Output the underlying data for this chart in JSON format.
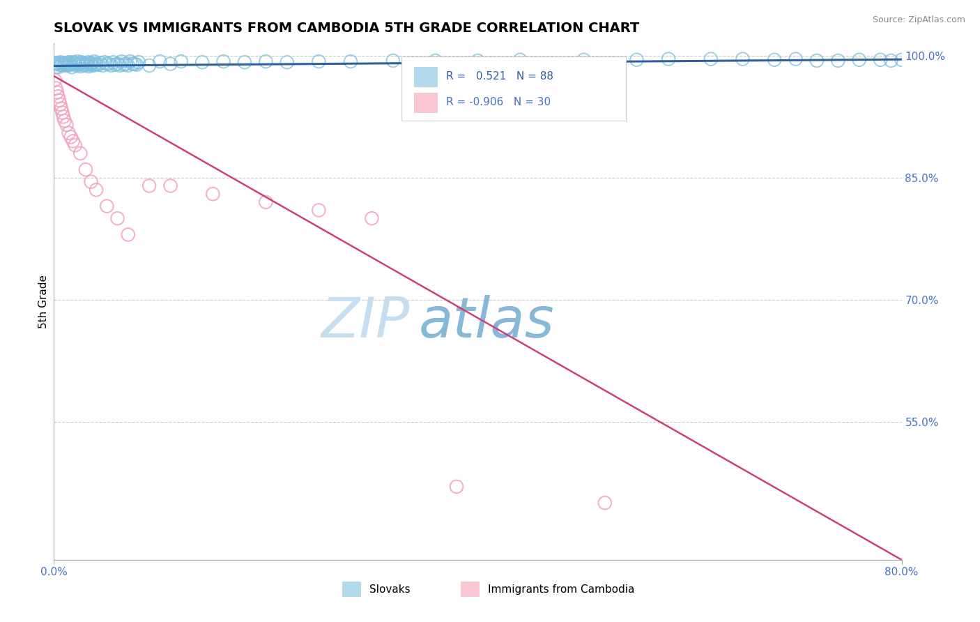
{
  "title": "SLOVAK VS IMMIGRANTS FROM CAMBODIA 5TH GRADE CORRELATION CHART",
  "source_text": "Source: ZipAtlas.com",
  "ylabel": "5th Grade",
  "xmin": 0.0,
  "xmax": 0.8,
  "ymin": 0.38,
  "ymax": 1.015,
  "yticks": [
    0.55,
    0.7,
    0.85,
    1.0
  ],
  "ytick_labels": [
    "55.0%",
    "70.0%",
    "85.0%",
    "100.0%"
  ],
  "blue_R": 0.521,
  "blue_N": 88,
  "pink_R": -0.906,
  "pink_N": 30,
  "blue_scatter_color": "#7fbfdf",
  "pink_scatter_color": "#f5a0b8",
  "blue_line_color": "#3060a0",
  "pink_line_color": "#d04070",
  "axis_tick_color": "#4472c4",
  "grid_color": "#cccccc",
  "watermark_zip_color": "#c0d8ee",
  "watermark_atlas_color": "#90b8d8",
  "legend_label_blue": "Slovaks",
  "legend_label_pink": "Immigrants from Cambodia",
  "title_fontsize": 14,
  "blue_line_x": [
    0.0,
    0.8
  ],
  "blue_line_y": [
    0.9875,
    0.9955
  ],
  "pink_line_x": [
    0.0,
    0.8
  ],
  "pink_line_y": [
    0.975,
    0.38
  ],
  "blue_scatter_x": [
    0.001,
    0.002,
    0.003,
    0.004,
    0.005,
    0.006,
    0.007,
    0.008,
    0.009,
    0.01,
    0.011,
    0.012,
    0.013,
    0.014,
    0.015,
    0.016,
    0.017,
    0.018,
    0.019,
    0.02,
    0.021,
    0.022,
    0.023,
    0.024,
    0.025,
    0.026,
    0.027,
    0.028,
    0.029,
    0.03,
    0.031,
    0.032,
    0.033,
    0.034,
    0.035,
    0.036,
    0.037,
    0.038,
    0.039,
    0.04,
    0.042,
    0.044,
    0.046,
    0.048,
    0.05,
    0.052,
    0.054,
    0.056,
    0.058,
    0.06,
    0.062,
    0.064,
    0.066,
    0.068,
    0.07,
    0.072,
    0.074,
    0.076,
    0.078,
    0.08,
    0.09,
    0.1,
    0.11,
    0.12,
    0.14,
    0.16,
    0.18,
    0.2,
    0.22,
    0.25,
    0.28,
    0.32,
    0.36,
    0.4,
    0.44,
    0.5,
    0.55,
    0.58,
    0.62,
    0.65,
    0.68,
    0.7,
    0.72,
    0.74,
    0.76,
    0.78,
    0.79,
    0.8
  ],
  "blue_scatter_y": [
    0.99,
    0.986,
    0.991,
    0.986,
    0.989,
    0.992,
    0.989,
    0.991,
    0.988,
    0.99,
    0.989,
    0.991,
    0.988,
    0.992,
    0.989,
    0.99,
    0.986,
    0.992,
    0.99,
    0.991,
    0.988,
    0.993,
    0.989,
    0.99,
    0.987,
    0.992,
    0.989,
    0.991,
    0.988,
    0.99,
    0.989,
    0.992,
    0.987,
    0.99,
    0.989,
    0.991,
    0.988,
    0.993,
    0.989,
    0.99,
    0.989,
    0.991,
    0.988,
    0.992,
    0.99,
    0.99,
    0.988,
    0.992,
    0.989,
    0.99,
    0.988,
    0.993,
    0.989,
    0.99,
    0.988,
    0.993,
    0.99,
    0.99,
    0.989,
    0.992,
    0.988,
    0.993,
    0.99,
    0.993,
    0.992,
    0.993,
    0.992,
    0.993,
    0.992,
    0.993,
    0.993,
    0.994,
    0.994,
    0.994,
    0.995,
    0.995,
    0.995,
    0.996,
    0.996,
    0.996,
    0.995,
    0.996,
    0.994,
    0.994,
    0.995,
    0.995,
    0.994,
    0.995
  ],
  "pink_scatter_x": [
    0.001,
    0.002,
    0.003,
    0.004,
    0.005,
    0.006,
    0.007,
    0.008,
    0.009,
    0.01,
    0.012,
    0.014,
    0.016,
    0.018,
    0.02,
    0.025,
    0.03,
    0.035,
    0.04,
    0.05,
    0.06,
    0.07,
    0.09,
    0.11,
    0.15,
    0.2,
    0.25,
    0.3,
    0.38,
    0.52
  ],
  "pink_scatter_y": [
    0.97,
    0.96,
    0.955,
    0.95,
    0.945,
    0.94,
    0.935,
    0.93,
    0.925,
    0.92,
    0.915,
    0.905,
    0.9,
    0.895,
    0.89,
    0.88,
    0.86,
    0.845,
    0.835,
    0.815,
    0.8,
    0.78,
    0.84,
    0.84,
    0.83,
    0.82,
    0.81,
    0.8,
    0.47,
    0.45
  ]
}
